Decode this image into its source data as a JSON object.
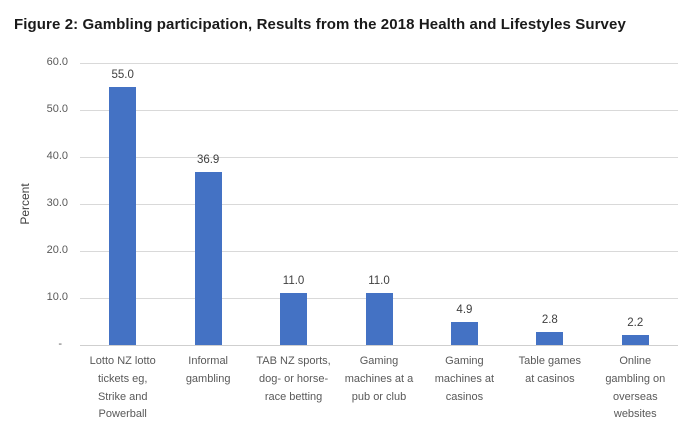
{
  "chart_data": {
    "type": "bar",
    "title": "Figure 2: Gambling participation, Results from the 2018 Health and Lifestyles Survey",
    "categories": [
      "Lotto NZ lotto\ntickets eg,\nStrike and\nPowerball",
      "Informal\ngambling",
      "TAB NZ sports,\ndog- or horse-\nrace betting",
      "Gaming\nmachines at a\npub or club",
      "Gaming\nmachines at\ncasinos",
      "Table games\nat casinos",
      "Online\ngambling on\noverseas\nwebsites"
    ],
    "values": [
      55.0,
      36.9,
      11.0,
      11.0,
      4.9,
      2.8,
      2.2
    ],
    "value_labels": [
      "55.0",
      "36.9",
      "11.0",
      "11.0",
      "4.9",
      "2.8",
      "2.2"
    ],
    "xlabel": "",
    "ylabel": "Percent",
    "ylim": [
      0,
      60
    ],
    "ytick_step": 10,
    "ytick_labels_top_to_bottom": [
      "60.0",
      "50.0",
      "40.0",
      "30.0",
      "20.0",
      "10.0",
      "-"
    ],
    "grid": true,
    "legend": false,
    "colors": {
      "bar": "#4472c4",
      "gridline": "#d9d9d9",
      "axis_text": "#595959",
      "value_label_text": "#404040",
      "title_text": "#1a1a1a"
    }
  }
}
